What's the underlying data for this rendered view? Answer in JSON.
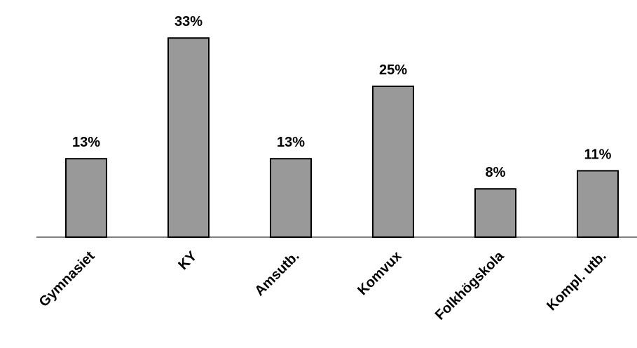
{
  "chart_data": {
    "type": "bar",
    "categories": [
      "Gymnasiet",
      "KY",
      "Amsutb.",
      "Komvux",
      "Folkhögskola",
      "Kompl. utb."
    ],
    "values": [
      13,
      33,
      13,
      25,
      8,
      11
    ],
    "value_labels": [
      "13%",
      "33%",
      "13%",
      "25%",
      "8%",
      "11%"
    ],
    "title": "",
    "xlabel": "",
    "ylabel": "",
    "ylim": [
      0,
      35
    ],
    "grid": false,
    "legend": "none",
    "colors": {
      "bar_fill": "#999999",
      "bar_stroke": "#000000",
      "axis": "#000000"
    }
  }
}
